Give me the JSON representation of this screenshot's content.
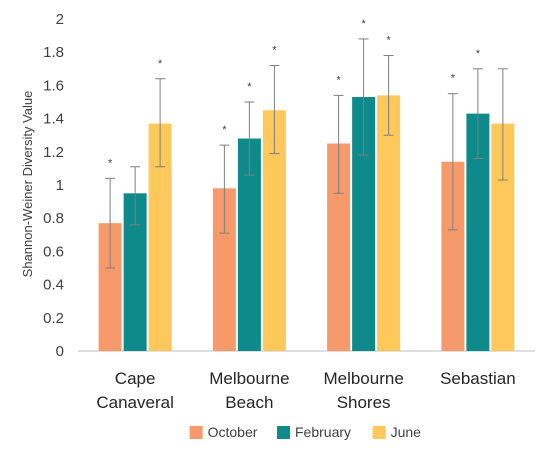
{
  "chart_data": {
    "type": "bar",
    "ylabel": "Shannon-Weiner  Diversity Value",
    "xlabel": "",
    "title": "",
    "ylim": [
      0,
      2
    ],
    "yticks": [
      "0",
      "0.2",
      "0.4",
      "0.6",
      "0.8",
      "1",
      "1.2",
      "1.4",
      "1.6",
      "1.8",
      "2"
    ],
    "ytick_values": [
      0,
      0.2,
      0.4,
      0.6,
      0.8,
      1,
      1.2,
      1.4,
      1.6,
      1.8,
      2
    ],
    "categories": [
      [
        "Cape",
        "Canaveral"
      ],
      [
        "Melbourne",
        "Beach"
      ],
      [
        "Melbourne",
        "Shores"
      ],
      [
        "Sebastian"
      ]
    ],
    "series": [
      {
        "name": "October",
        "color": "#F79A6B",
        "values": [
          0.77,
          0.98,
          1.25,
          1.14
        ],
        "error_low": [
          0.5,
          0.71,
          0.95,
          0.73
        ],
        "error_high": [
          1.04,
          1.24,
          1.54,
          1.55
        ],
        "significance": [
          "*",
          "*",
          "*",
          "*"
        ]
      },
      {
        "name": "February",
        "color": "#0E8A8A",
        "values": [
          0.95,
          1.28,
          1.53,
          1.43
        ],
        "error_low": [
          0.76,
          1.06,
          1.18,
          1.16
        ],
        "error_high": [
          1.11,
          1.5,
          1.88,
          1.7
        ],
        "significance": [
          "",
          "*",
          "*",
          "*"
        ]
      },
      {
        "name": "June",
        "color": "#FFC85A",
        "values": [
          1.37,
          1.45,
          1.54,
          1.37
        ],
        "error_low": [
          1.11,
          1.19,
          1.3,
          1.03
        ],
        "error_high": [
          1.64,
          1.72,
          1.78,
          1.7
        ],
        "significance": [
          "*",
          "*",
          "*",
          ""
        ]
      }
    ],
    "legend_position": "bottom",
    "grid": false,
    "axis_color": "#BFBFBF",
    "error_bar_color": "#7F7F7F"
  }
}
